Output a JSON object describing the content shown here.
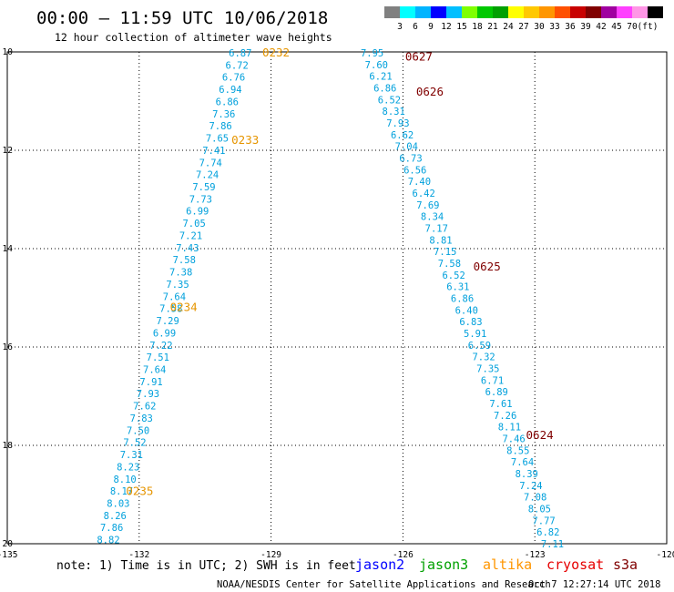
{
  "header": {
    "title": "00:00 – 11:59 UTC 10/06/2018",
    "subtitle": "12 hour collection of altimeter wave heights"
  },
  "legend": {
    "colors": [
      "#808080",
      "#00ffff",
      "#00b4ff",
      "#0000ff",
      "#00bfff",
      "#7fff00",
      "#00c800",
      "#00a000",
      "#ffff00",
      "#ffc800",
      "#ff9600",
      "#ff5000",
      "#c80000",
      "#800000",
      "#a000a0",
      "#ff40ff",
      "#ff96e6",
      "#000000"
    ],
    "labels": [
      "3",
      "6",
      "9",
      "12",
      "15",
      "18",
      "21",
      "24",
      "27",
      "30",
      "33",
      "36",
      "39",
      "42",
      "45",
      "70",
      "(ft)"
    ]
  },
  "axes": {
    "x_ticks": [
      "-135",
      "-132",
      "-129",
      "-126",
      "-123",
      "-120"
    ],
    "x_range": [
      -135,
      -120
    ],
    "y_ticks": [
      "10",
      "12",
      "14",
      "16",
      "18",
      "20"
    ],
    "y_range": [
      10,
      20
    ]
  },
  "colors": {
    "data": "#00a0dc",
    "pass_label": "#e69500",
    "pass_label_dark": "#800000",
    "frame": "#000000"
  },
  "track1": {
    "values": [
      "6.87",
      "6.72",
      "6.76",
      "6.94",
      "6.86",
      "7.36",
      "7.86",
      "7.65",
      "7.41",
      "7.74",
      "7.24",
      "7.59",
      "7.73",
      "6.99",
      "7.05",
      "7.21",
      "7.43",
      "7.58",
      "7.38",
      "7.35",
      "7.64",
      "7.58",
      "7.29",
      "6.99",
      "7.22",
      "7.51",
      "7.64",
      "7.91",
      "7.93",
      "7.62",
      "7.83",
      "7.50",
      "7.52",
      "7.31",
      "8.23",
      "8.10",
      "8.17",
      "8.03",
      "8.26",
      "7.86",
      "8.82"
    ],
    "start": [
      -129.7,
      10.0
    ],
    "end": [
      -132.7,
      19.9
    ]
  },
  "track2": {
    "values": [
      "7.95",
      "7.60",
      "6.21",
      "6.86",
      "6.52",
      "8.31",
      "7.93",
      "6.62",
      "7.04",
      "6.73",
      "6.56",
      "7.40",
      "6.42",
      "7.69",
      "8.34",
      "7.17",
      "8.81",
      "7.15",
      "7.58",
      "6.52",
      "6.31",
      "6.86",
      "6.40",
      "6.83",
      "5.91",
      "6.59",
      "7.32",
      "7.35",
      "6.71",
      "6.89",
      "7.61",
      "7.26",
      "8.11",
      "7.46",
      "8.55",
      "7.64",
      "8.39",
      "7.24",
      "7.08",
      "8.05",
      "7.77",
      "6.82",
      "7.11"
    ],
    "start": [
      -126.7,
      10.0
    ],
    "end": [
      -122.6,
      19.98
    ]
  },
  "pass_labels": [
    {
      "text": "0232",
      "lon": -129.2,
      "lat": 10.0,
      "color": "orange"
    },
    {
      "text": "0233",
      "lon": -129.9,
      "lat": 11.78,
      "color": "orange"
    },
    {
      "text": "0234",
      "lon": -131.3,
      "lat": 15.18,
      "color": "orange"
    },
    {
      "text": "0235",
      "lon": -132.3,
      "lat": 18.92,
      "color": "orange"
    },
    {
      "text": "0627",
      "lon": -125.95,
      "lat": 10.08,
      "color": "dark"
    },
    {
      "text": "0626",
      "lon": -125.7,
      "lat": 10.8,
      "color": "dark"
    },
    {
      "text": "0625",
      "lon": -124.4,
      "lat": 14.35,
      "color": "dark"
    },
    {
      "text": "0624",
      "lon": -123.2,
      "lat": 17.78,
      "color": "dark"
    }
  ],
  "footer": {
    "note": "note: 1) Time is in UTC; 2) SWH is in feet",
    "satellites": [
      {
        "name": "jason2",
        "color": "#0000ff"
      },
      {
        "name": "jason3",
        "color": "#00a000"
      },
      {
        "name": "altika",
        "color": "#ff9600"
      },
      {
        "name": "cryosat",
        "color": "#e60000"
      },
      {
        "name": "s3a",
        "color": "#800000"
      }
    ],
    "credit": "NOAA/NESDIS Center for Satellite Applications and Research",
    "timestamp": "Oct  7 12:27:14 UTC 2018"
  }
}
